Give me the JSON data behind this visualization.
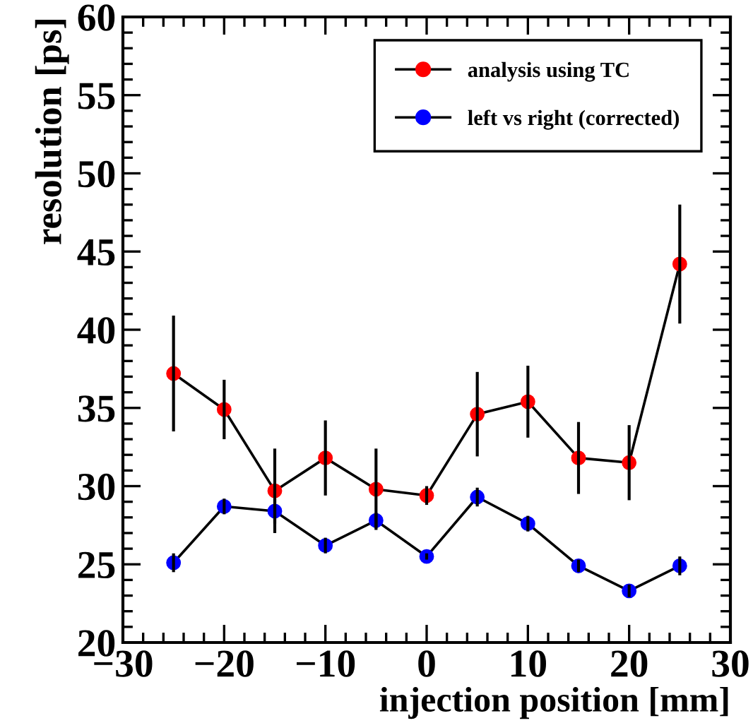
{
  "chart_data": {
    "type": "line",
    "xlabel": "injection position [mm]",
    "ylabel": "resolution [ps]",
    "x": [
      -25,
      -20,
      -15,
      -10,
      -5,
      0,
      5,
      10,
      15,
      20,
      25
    ],
    "xlim": [
      -30,
      30
    ],
    "xticks": [
      {
        "value": -30,
        "label": "−30"
      },
      {
        "value": -20,
        "label": "−20"
      },
      {
        "value": -10,
        "label": "−10"
      },
      0,
      10,
      20,
      30
    ],
    "ylim": [
      20,
      60
    ],
    "yticks": [
      20,
      25,
      30,
      35,
      40,
      45,
      50,
      55,
      60
    ],
    "marker": "circle",
    "line_style": "solid",
    "grid": false,
    "legend": "top right",
    "series": [
      {
        "name": "analysis using TC",
        "color": "#ff0000",
        "values": [
          37.2,
          34.9,
          29.7,
          31.8,
          29.8,
          29.4,
          34.6,
          35.4,
          31.8,
          31.5,
          44.2
        ],
        "errors": [
          3.7,
          1.9,
          2.7,
          2.4,
          2.6,
          0.6,
          2.7,
          2.3,
          2.3,
          2.4,
          3.8
        ]
      },
      {
        "name": "left vs right (corrected)",
        "color": "#0000ff",
        "values": [
          25.1,
          28.7,
          28.4,
          26.2,
          27.8,
          25.5,
          29.3,
          27.6,
          24.9,
          23.3,
          24.9
        ],
        "errors": [
          0.6,
          0.5,
          0.8,
          0.5,
          0.5,
          0.2,
          0.6,
          0.5,
          0.4,
          0.4,
          0.6
        ]
      }
    ]
  }
}
